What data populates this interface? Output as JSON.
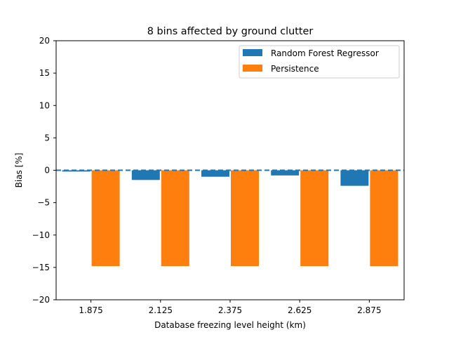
{
  "chart_data": {
    "type": "bar",
    "title": "8 bins affected by ground clutter",
    "xlabel": "Database freezing level height (km)",
    "ylabel": "Bias [%]",
    "categories": [
      "1.875",
      "2.125",
      "2.375",
      "2.625",
      "2.875"
    ],
    "ylim": [
      -20,
      20
    ],
    "yticks": [
      "−20",
      "−15",
      "−10",
      "−5",
      "0",
      "5",
      "10",
      "15",
      "20"
    ],
    "ytick_values": [
      -20,
      -15,
      -10,
      -5,
      0,
      5,
      10,
      15,
      20
    ],
    "series": [
      {
        "name": "Random Forest Regressor",
        "color": "#1f77b4",
        "values": [
          -0.2,
          -1.5,
          -1.0,
          -0.8,
          -2.4
        ]
      },
      {
        "name": "Persistence",
        "color": "#ff7f0e",
        "values": [
          -14.8,
          -14.8,
          -14.8,
          -14.8,
          -14.8
        ]
      }
    ],
    "reference_line": {
      "y": 0,
      "style": "dashed",
      "color": "#1f77b4"
    },
    "legend": "top-right",
    "grid": false
  }
}
